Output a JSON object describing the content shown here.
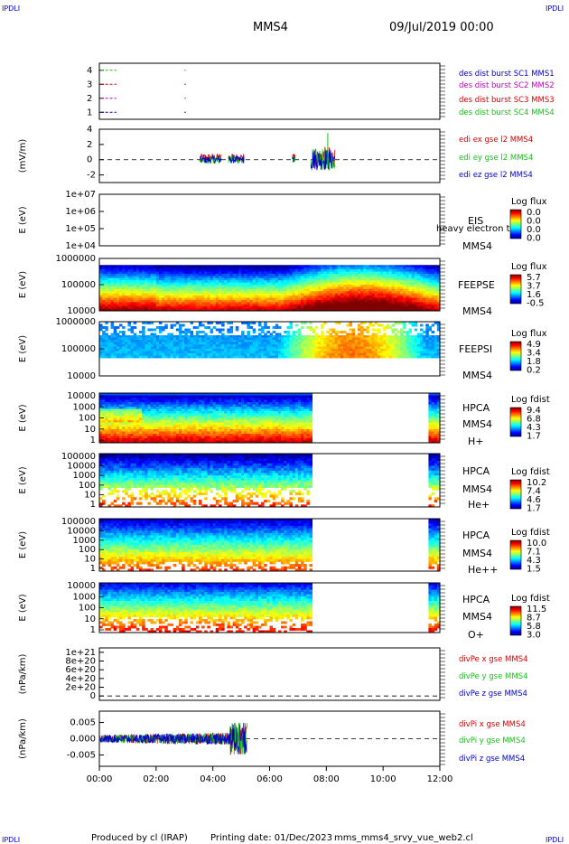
{
  "header": {
    "corner_left_top": "IPDLI",
    "corner_right_top": "IPDLI",
    "corner_left_bottom": "IPDLI",
    "corner_right_bottom": "IPDLI",
    "title": "MMS4",
    "datetime": "09/Jul/2019 00:00"
  },
  "footer": {
    "produced_by": "Produced by cl (IRAP)",
    "printing_date": "Printing date: 01/Dec/2023",
    "filename": "mms_mms4_srvy_vue_web2.cl"
  },
  "x_axis": {
    "ticks": [
      "00:00",
      "02:00",
      "04:00",
      "06:00",
      "08:00",
      "10:00",
      "12:00"
    ],
    "range_hours": [
      0,
      12
    ]
  },
  "colors": {
    "red": "#d40000",
    "green": "#18c018",
    "blue": "#0000cc",
    "magenta": "#c000c0"
  },
  "chart_data": [
    {
      "type": "line",
      "panel": "burst",
      "yticks": [
        "4",
        "3",
        "2",
        "1"
      ],
      "ylim": [
        0.5,
        4.5
      ],
      "series": [
        {
          "name": "des dist burst SC1 MMS1",
          "color": "#0000cc",
          "y": 1,
          "segments": [
            [
              0.05,
              0.6
            ],
            [
              3.0,
              3.05
            ]
          ]
        },
        {
          "name": "des dist burst SC2 MMS2",
          "color": "#c000c0",
          "y": 2,
          "segments": [
            [
              0.05,
              0.6
            ],
            [
              3.0,
              3.05
            ]
          ]
        },
        {
          "name": "des dist burst SC3 MMS3",
          "color": "#d40000",
          "y": 3,
          "segments": [
            [
              0.05,
              0.6
            ],
            [
              3.0,
              3.05
            ]
          ]
        },
        {
          "name": "des dist burst SC4 MMS4",
          "color": "#18c018",
          "y": 4,
          "segments": [
            [
              0.05,
              0.6
            ],
            [
              3.0,
              3.05
            ]
          ]
        }
      ]
    },
    {
      "type": "line",
      "panel": "edi",
      "ylabel": "(mV/m)",
      "yticks": [
        "4",
        "2",
        "0",
        "-2"
      ],
      "ylim": [
        -3,
        4
      ],
      "series": [
        {
          "name": "edi ex gse l2 MMS4",
          "color": "#d40000"
        },
        {
          "name": "edi ey gse l2 MMS4",
          "color": "#18c018"
        },
        {
          "name": "edi ez gse l2 MMS4",
          "color": "#0000cc"
        }
      ],
      "data_intervals_hours": [
        [
          3.55,
          4.3
        ],
        [
          4.55,
          5.1
        ],
        [
          6.8,
          6.9
        ],
        [
          7.45,
          8.3
        ]
      ]
    },
    {
      "type": "heatmap",
      "panel": "eis",
      "ylabel": "E (eV)",
      "yticks": [
        "1e+07",
        "1e+06",
        "1e+05",
        "1e+04"
      ],
      "labels": [
        "EIS",
        "heavy electron to",
        "MMS4"
      ],
      "colorbar_title": "Log flux",
      "colorbar_ticks": [
        "0.0",
        "0.0",
        "0.0",
        "0.0"
      ],
      "empty": true
    },
    {
      "type": "heatmap",
      "panel": "feepse",
      "ylabel": "E (eV)",
      "yticks": [
        "1000000",
        "100000",
        "10000"
      ],
      "labels": [
        "FEEPSE",
        "MMS4"
      ],
      "colorbar_title": "Log flux",
      "colorbar_ticks": [
        "5.7",
        "3.7",
        "1.6",
        "-0.5"
      ]
    },
    {
      "type": "heatmap",
      "panel": "feepsi",
      "ylabel": "E (eV)",
      "yticks": [
        "1000000",
        "100000",
        "10000"
      ],
      "labels": [
        "FEEPSI",
        "MMS4"
      ],
      "colorbar_title": "Log flux",
      "colorbar_ticks": [
        "4.9",
        "3.4",
        "1.8",
        "0.2"
      ]
    },
    {
      "type": "heatmap",
      "panel": "hpca_h",
      "ylabel": "E (eV)",
      "yticks": [
        "10000",
        "1000",
        "100",
        "10",
        "1"
      ],
      "labels": [
        "HPCA",
        "MMS4",
        "H+"
      ],
      "colorbar_title": "Log fdist",
      "colorbar_ticks": [
        "9.4",
        "6.8",
        "4.3",
        "1.7"
      ],
      "data_intervals_hours": [
        [
          0,
          7.45
        ],
        [
          11.6,
          12
        ]
      ]
    },
    {
      "type": "heatmap",
      "panel": "hpca_he",
      "ylabel": "E (eV)",
      "yticks": [
        "100000",
        "10000",
        "1000",
        "100",
        "10",
        "1"
      ],
      "labels": [
        "HPCA",
        "MMS4",
        "He+"
      ],
      "colorbar_title": "Log fdist",
      "colorbar_ticks": [
        "10.2",
        "7.4",
        "4.6",
        "1.7"
      ],
      "data_intervals_hours": [
        [
          0,
          7.45
        ],
        [
          11.6,
          12
        ]
      ]
    },
    {
      "type": "heatmap",
      "panel": "hpca_he2",
      "ylabel": "E (eV)",
      "yticks": [
        "100000",
        "10000",
        "1000",
        "100",
        "10",
        "1"
      ],
      "labels": [
        "HPCA",
        "MMS4",
        "He++"
      ],
      "colorbar_title": "Log fdist",
      "colorbar_ticks": [
        "10.0",
        "7.1",
        "4.3",
        "1.5"
      ],
      "data_intervals_hours": [
        [
          0,
          7.45
        ],
        [
          11.6,
          12
        ]
      ]
    },
    {
      "type": "heatmap",
      "panel": "hpca_o",
      "ylabel": "E (eV)",
      "yticks": [
        "10000",
        "1000",
        "100",
        "10",
        "1"
      ],
      "labels": [
        "HPCA",
        "MMS4",
        "O+"
      ],
      "colorbar_title": "Log fdist",
      "colorbar_ticks": [
        "11.5",
        "8.7",
        "5.8",
        "3.0"
      ],
      "data_intervals_hours": [
        [
          0,
          7.45
        ],
        [
          11.6,
          12
        ]
      ]
    },
    {
      "type": "line",
      "panel": "divpe",
      "ylabel": "(nPa/km)",
      "yticks": [
        "1e+21",
        "8e+20",
        "6e+20",
        "4e+20",
        "2e+20",
        "0"
      ],
      "ylim": [
        -1e+20,
        1.1e+21
      ],
      "series": [
        {
          "name": "divPe x gse MMS4",
          "color": "#d40000"
        },
        {
          "name": "divPe y gse MMS4",
          "color": "#18c018"
        },
        {
          "name": "divPe z gse MMS4",
          "color": "#0000cc"
        }
      ]
    },
    {
      "type": "line",
      "panel": "divpi",
      "ylabel": "(nPa/km)",
      "yticks": [
        "0.005",
        "0.000",
        "-0.005"
      ],
      "ylim": [
        -0.0085,
        0.0085
      ],
      "series": [
        {
          "name": "divPi x gse MMS4",
          "color": "#d40000"
        },
        {
          "name": "divPi y gse MMS4",
          "color": "#18c018"
        },
        {
          "name": "divPi z gse MMS4",
          "color": "#0000cc"
        }
      ],
      "data_interval_hours": [
        0,
        5.2
      ]
    }
  ]
}
